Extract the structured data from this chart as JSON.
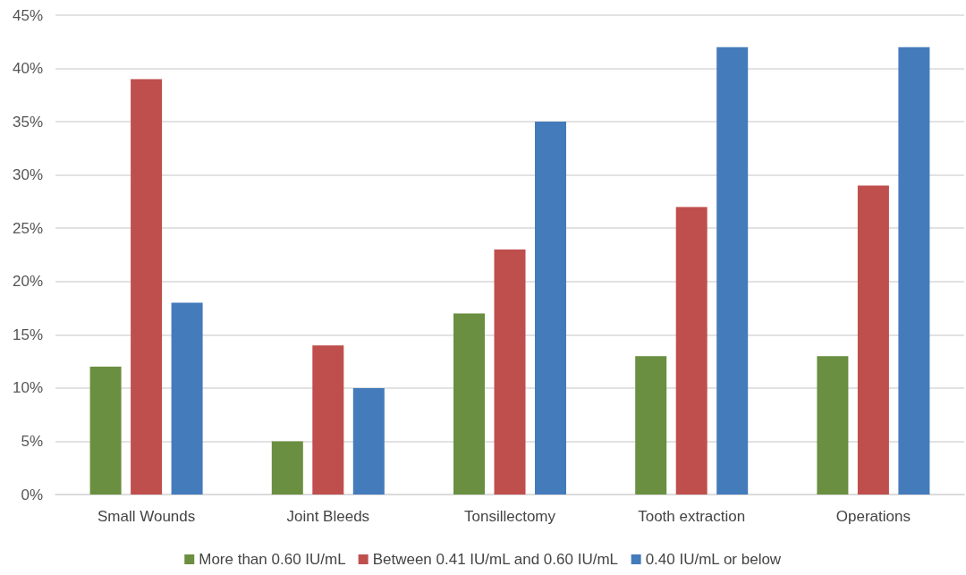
{
  "chart_data": {
    "type": "bar",
    "categories": [
      "Small Wounds",
      "Joint Bleeds",
      "Tonsillectomy",
      "Tooth extraction",
      "Operations"
    ],
    "series": [
      {
        "name": "More than 0.60 IU/mL",
        "color": "#6a8f40",
        "values": [
          12,
          5,
          17,
          13,
          13
        ]
      },
      {
        "name": "Between 0.41 IU/mL and 0.60 IU/mL",
        "color": "#bf4f4d",
        "values": [
          39,
          14,
          23,
          27,
          29
        ]
      },
      {
        "name": "0.40 IU/mL or below",
        "color": "#447bbb",
        "values": [
          18,
          10,
          35,
          42,
          42
        ]
      }
    ],
    "ylim": [
      0,
      45
    ],
    "yticks": [
      {
        "value": 0,
        "label": "0%"
      },
      {
        "value": 5,
        "label": "5%"
      },
      {
        "value": 10,
        "label": "10%"
      },
      {
        "value": 15,
        "label": "15%"
      },
      {
        "value": 20,
        "label": "20%"
      },
      {
        "value": 25,
        "label": "25%"
      },
      {
        "value": 30,
        "label": "30%"
      },
      {
        "value": 35,
        "label": "35%"
      },
      {
        "value": 40,
        "label": "40%"
      },
      {
        "value": 45,
        "label": "45%"
      }
    ],
    "grid": "y",
    "legend": "bottom"
  }
}
